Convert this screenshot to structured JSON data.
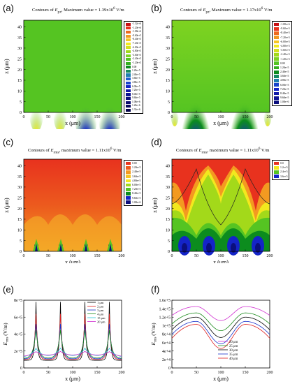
{
  "panels": [
    {
      "id": "a",
      "label": "(a)",
      "title_pre": "Contours of ",
      "title_sym": "E",
      "title_sub": "px",
      "title_post": ", Maximum value = 1.39x10",
      "title_exp": "6",
      "title_unit": " V/m",
      "xlabel": "x (μm)",
      "ylabel": "z (μm)",
      "xticks": [
        "0",
        "50",
        "100",
        "150",
        "200"
      ],
      "yticks": [
        "0",
        "5",
        "10",
        "15",
        "20",
        "25",
        "30",
        "35",
        "40"
      ],
      "legend": [
        "-1.32e+6",
        "-1.20e+6",
        "-1.08e+6",
        "-9.60e+5",
        "-8.40e+5",
        "-7.20e+5",
        "-6.00e+5",
        "-4.80e+5",
        "-3.60e+5",
        "-2.40e+5",
        "-1.20e+5",
        "0.00",
        "1.20e+5",
        "2.40e+5",
        "3.60e+5",
        "4.80e+5",
        "6.00e+5",
        "7.20e+5",
        "8.40e+5",
        "9.60e+5",
        "1.08e+6",
        "1.20e+6",
        "1.32e+6"
      ]
    },
    {
      "id": "b",
      "label": "(b)",
      "title_pre": "Contours of ",
      "title_sym": "E",
      "title_sub": "pz",
      "title_post": ", Maximum value = 1.17x10",
      "title_exp": "6",
      "title_unit": " V/m",
      "xlabel": "x (μm)",
      "ylabel": "z (μm)",
      "xticks": [
        "0",
        "50",
        "100",
        "150",
        "200"
      ],
      "yticks": [
        "0",
        "5",
        "10",
        "15",
        "20",
        "25",
        "30",
        "35",
        "40"
      ],
      "legend": [
        "-1.08e+6",
        "-9.60e+5",
        "-8.40e+5",
        "-7.20e+5",
        "-6.00e+5",
        "-4.80e+5",
        "-3.60e+5",
        "-2.40e+5",
        "-1.20e+5",
        "0.00",
        "1.20e+5",
        "2.40e+5",
        "3.60e+5",
        "4.80e+5",
        "6.00e+5",
        "7.20e+5",
        "8.40e+5",
        "9.60e+5",
        "1.08e+6"
      ]
    },
    {
      "id": "c",
      "label": "(c)",
      "title_pre": "Contours of ",
      "title_sym": "E",
      "title_sub": "rms",
      "title_post": ", maximum value = 1.11x10",
      "title_exp": "6",
      "title_unit": " V/m",
      "xlabel": "x (μm)",
      "ylabel": "z (μm)",
      "xticks": [
        "0",
        "50",
        "100",
        "150",
        "200"
      ],
      "yticks": [
        "0",
        "5",
        "10",
        "15",
        "20",
        "25",
        "30",
        "35",
        "40"
      ],
      "legend": [
        "0.00",
        "1.20e+5",
        "2.40e+5",
        "3.60e+5",
        "4.80e+5",
        "6.00e+5",
        "7.20e+5",
        "8.40e+5",
        "9.60e+5",
        "1.08e+6"
      ]
    },
    {
      "id": "d",
      "label": "(d)",
      "title_pre": "Contours of ",
      "title_sym": "E",
      "title_sub": "rms",
      "title_post": ", maximum value = 1.11x10",
      "title_exp": "6",
      "title_unit": " V/m",
      "xlabel": "x (μm)",
      "ylabel": "z (μm)",
      "xticks": [
        "0",
        "50",
        "100",
        "150",
        "200"
      ],
      "yticks": [
        "0",
        "5",
        "10",
        "15",
        "20",
        "25",
        "30",
        "35",
        "40"
      ],
      "legend": [
        "0.0",
        "1.2e+5",
        "2.4e+5",
        "3.6e+5"
      ]
    }
  ],
  "colors": {
    "green": "#55c422",
    "red": "#e8321e",
    "orange": "#f39a21",
    "yellow": "#f2e81e",
    "lime": "#a3d91a",
    "darkgreen": "#0c8c1e",
    "blue": "#1424c8",
    "navy": "#0b0f7e"
  },
  "chart_data": [
    {
      "id": "e",
      "label": "(e)",
      "type": "line",
      "xlabel": "x (μm)",
      "ylabel": "E_rms (V/m)",
      "ylabel_sym": "E",
      "ylabel_sub": "rms",
      "ylabel_unit": " (V/m)",
      "xlim": [
        0,
        200
      ],
      "ylim": [
        0,
        800000
      ],
      "yticks": [
        "0",
        "2e+5",
        "4e+5",
        "6e+5",
        "8e+5"
      ],
      "xticks": [
        "0",
        "50",
        "100",
        "150",
        "200"
      ],
      "series": [
        {
          "name": "1 μm",
          "color": "#000000",
          "peak": 780000,
          "base": 90000,
          "width": 2.5
        },
        {
          "name": "2 μm",
          "color": "#e02020",
          "peak": 640000,
          "base": 100000,
          "width": 3.5
        },
        {
          "name": "3 μm",
          "color": "#1a33cc",
          "peak": 520000,
          "base": 105000,
          "width": 4.5
        },
        {
          "name": "4 μm",
          "color": "#1a8a1a",
          "peak": 450000,
          "base": 110000,
          "width": 5.5
        },
        {
          "name": "15 μm",
          "color": "#2ac7d8",
          "peak": 230000,
          "base": 120000,
          "width": 12
        },
        {
          "name": "20 μm",
          "color": "#d030d0",
          "peak": 190000,
          "base": 125000,
          "width": 16
        }
      ]
    },
    {
      "id": "f",
      "label": "(f)",
      "type": "line",
      "xlabel": "x (μm)",
      "ylabel": "E_rms (V/m)",
      "ylabel_sym": "E",
      "ylabel_sub": "rms",
      "ylabel_unit": " (V/m)",
      "xlim": [
        0,
        200
      ],
      "ylim": [
        0,
        160000
      ],
      "yticks": [
        "0",
        "2e+4",
        "4e+4",
        "6e+4",
        "8e+4",
        "1e+5",
        "1.2e+5",
        "1.4e+5",
        "1.6e+5"
      ],
      "xticks": [
        "0",
        "50",
        "100",
        "150",
        "200"
      ],
      "series": [
        {
          "name": "20 μm",
          "color": "#d030d0",
          "max": 145000,
          "min": 112000,
          "end": 124000
        },
        {
          "name": "25 μm",
          "color": "#1a8a1a",
          "max": 130000,
          "min": 88000,
          "end": 104000
        },
        {
          "name": "30 μm",
          "color": "#000000",
          "max": 120000,
          "min": 72000,
          "end": 90000
        },
        {
          "name": "35 μm",
          "color": "#1a33cc",
          "max": 110000,
          "min": 57000,
          "end": 79000
        },
        {
          "name": "40 μm",
          "color": "#e02020",
          "max": 103000,
          "min": 46000,
          "end": 70000
        }
      ]
    }
  ]
}
